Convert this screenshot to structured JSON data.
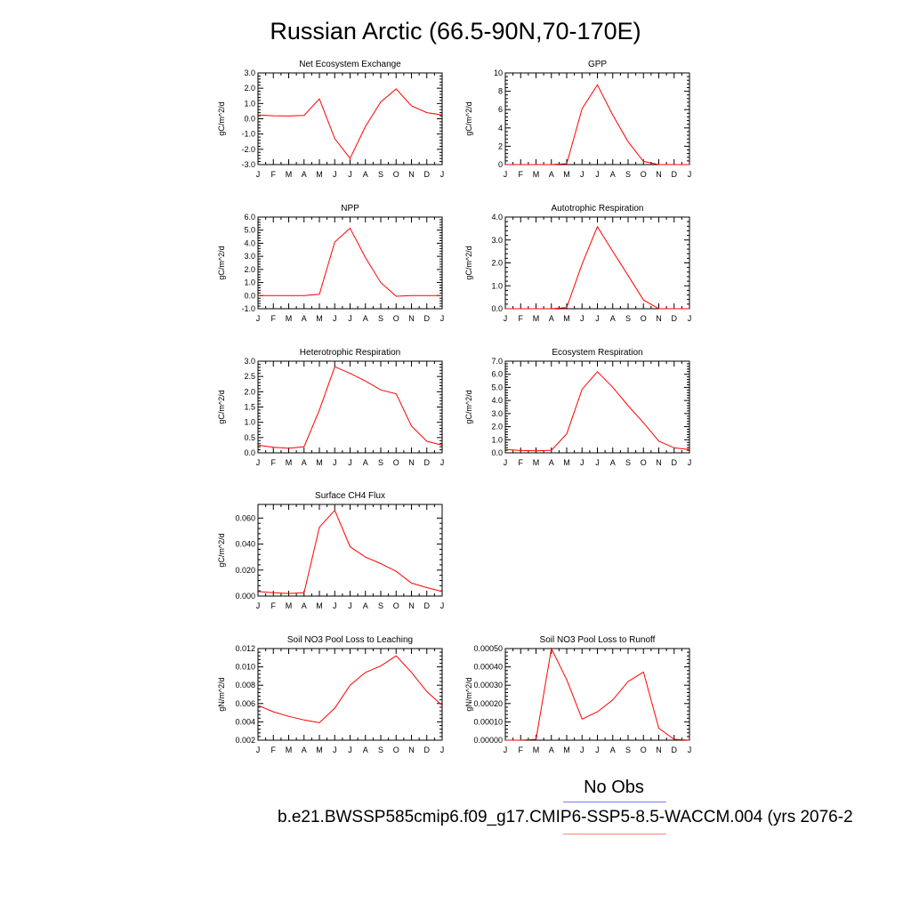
{
  "title": "Russian Arctic (66.5-90N,70-170E)",
  "legend": {
    "obs_label": "No Obs",
    "case_name": "b.e21.BWSSP585cmip6.f09_g17.CMIP6-SSP5-8.5-WACCM.004 (yrs 2076-2",
    "obs_color": "#7b7bff",
    "model_color": "#ff8080"
  },
  "chart_data": [
    {
      "type": "line",
      "title": "Net Ecosystem Exchange",
      "ylabel": "gC/m^2/d",
      "categories": [
        "J",
        "F",
        "M",
        "A",
        "M",
        "J",
        "J",
        "A",
        "S",
        "O",
        "N",
        "D",
        "J"
      ],
      "yticks": [
        "-3.0",
        "-2.0",
        "-1.0",
        "0.0",
        "1.0",
        "2.0",
        "3.0"
      ],
      "ylim": [
        -3.0,
        3.0
      ],
      "series": [
        {
          "values": [
            0.25,
            0.2,
            0.18,
            0.22,
            1.3,
            -1.3,
            -2.6,
            -0.5,
            1.1,
            1.95,
            0.85,
            0.4,
            0.25
          ],
          "color": "#ff0000"
        }
      ]
    },
    {
      "type": "line",
      "title": "GPP",
      "ylabel": "gC/m^2/d",
      "categories": [
        "J",
        "F",
        "M",
        "A",
        "M",
        "J",
        "J",
        "A",
        "S",
        "O",
        "N",
        "D",
        "J"
      ],
      "yticks": [
        "0",
        "2",
        "4",
        "6",
        "8",
        "10"
      ],
      "ylim": [
        0,
        10
      ],
      "series": [
        {
          "values": [
            0,
            0,
            0,
            0,
            0.1,
            6.1,
            8.7,
            5.4,
            2.5,
            0.35,
            0,
            0,
            0
          ],
          "color": "#ff0000"
        }
      ]
    },
    {
      "type": "line",
      "title": "NPP",
      "ylabel": "gC/m^2/d",
      "categories": [
        "J",
        "F",
        "M",
        "A",
        "M",
        "J",
        "J",
        "A",
        "S",
        "O",
        "N",
        "D",
        "J"
      ],
      "yticks": [
        "-1.0",
        "0.0",
        "1.0",
        "2.0",
        "3.0",
        "4.0",
        "5.0",
        "6.0"
      ],
      "ylim": [
        -1.0,
        6.0
      ],
      "series": [
        {
          "values": [
            0,
            0,
            0,
            0,
            0.1,
            4.1,
            5.15,
            2.9,
            1.0,
            -0.05,
            0,
            0,
            0
          ],
          "color": "#ff0000"
        }
      ]
    },
    {
      "type": "line",
      "title": "Autotrophic Respiration",
      "ylabel": "gC/m^2/d",
      "categories": [
        "J",
        "F",
        "M",
        "A",
        "M",
        "J",
        "J",
        "A",
        "S",
        "O",
        "N",
        "D",
        "J"
      ],
      "yticks": [
        "0.0",
        "1.0",
        "2.0",
        "3.0",
        "4.0"
      ],
      "ylim": [
        0,
        4.0
      ],
      "series": [
        {
          "values": [
            0,
            0,
            0,
            0,
            0.05,
            1.95,
            3.58,
            2.5,
            1.45,
            0.38,
            0,
            0,
            0
          ],
          "color": "#ff0000"
        }
      ]
    },
    {
      "type": "line",
      "title": "Heterotrophic Respiration",
      "ylabel": "gC/m^2/d",
      "categories": [
        "J",
        "F",
        "M",
        "A",
        "M",
        "J",
        "J",
        "A",
        "S",
        "O",
        "N",
        "D",
        "J"
      ],
      "yticks": [
        "0.0",
        "0.5",
        "1.0",
        "1.5",
        "2.0",
        "2.5",
        "3.0"
      ],
      "ylim": [
        0,
        3.0
      ],
      "series": [
        {
          "values": [
            0.25,
            0.18,
            0.15,
            0.2,
            1.4,
            2.82,
            2.6,
            2.35,
            2.06,
            1.93,
            0.88,
            0.38,
            0.25
          ],
          "color": "#ff0000"
        }
      ]
    },
    {
      "type": "line",
      "title": "Ecosystem Respiration",
      "ylabel": "gC/m^2/d",
      "categories": [
        "J",
        "F",
        "M",
        "A",
        "M",
        "J",
        "J",
        "A",
        "S",
        "O",
        "N",
        "D",
        "J"
      ],
      "yticks": [
        "0.0",
        "1.0",
        "2.0",
        "3.0",
        "4.0",
        "5.0",
        "6.0",
        "7.0"
      ],
      "ylim": [
        0,
        7.0
      ],
      "series": [
        {
          "values": [
            0.25,
            0.18,
            0.15,
            0.2,
            1.45,
            4.85,
            6.2,
            5.0,
            3.6,
            2.3,
            0.9,
            0.38,
            0.25
          ],
          "color": "#ff0000"
        }
      ]
    },
    {
      "type": "line",
      "title": "Surface CH4 Flux",
      "ylabel": "gC/m^2/d",
      "categories": [
        "J",
        "F",
        "M",
        "A",
        "M",
        "J",
        "J",
        "A",
        "S",
        "O",
        "N",
        "D",
        "J"
      ],
      "yticks": [
        "0.000",
        "0.020",
        "0.040",
        "0.060"
      ],
      "ylim": [
        0,
        0.0705
      ],
      "series": [
        {
          "values": [
            0.0035,
            0.0025,
            0.002,
            0.0025,
            0.053,
            0.066,
            0.038,
            0.03,
            0.025,
            0.019,
            0.01,
            0.0065,
            0.0035
          ],
          "color": "#ff0000"
        }
      ]
    },
    {
      "type": "line",
      "title": "Soil NO3 Pool Loss to Leaching",
      "ylabel": "gN/m^2/d",
      "categories": [
        "J",
        "F",
        "M",
        "A",
        "M",
        "J",
        "J",
        "A",
        "S",
        "O",
        "N",
        "D",
        "J"
      ],
      "yticks": [
        "0.002",
        "0.004",
        "0.006",
        "0.008",
        "0.010",
        "0.012"
      ],
      "ylim": [
        0.002,
        0.012
      ],
      "series": [
        {
          "values": [
            0.0058,
            0.0051,
            0.0046,
            0.0042,
            0.0039,
            0.0055,
            0.008,
            0.0094,
            0.0101,
            0.0112,
            0.0094,
            0.0073,
            0.0058
          ],
          "color": "#ff0000"
        }
      ]
    },
    {
      "type": "line",
      "title": "Soil NO3 Pool Loss to Runoff",
      "ylabel": "gN/m^2/d",
      "categories": [
        "J",
        "F",
        "M",
        "A",
        "M",
        "J",
        "J",
        "A",
        "S",
        "O",
        "N",
        "D",
        "J"
      ],
      "yticks": [
        "0.00000",
        "0.00010",
        "0.00020",
        "0.00030",
        "0.00040",
        "0.00050"
      ],
      "ylim": [
        0,
        0.0005
      ],
      "series": [
        {
          "values": [
            0,
            0,
            5e-06,
            0.0005,
            0.00033,
            0.000115,
            0.000155,
            0.00022,
            0.00032,
            0.000372,
            6.5e-05,
            5e-06,
            0
          ],
          "color": "#ff0000"
        }
      ]
    }
  ]
}
